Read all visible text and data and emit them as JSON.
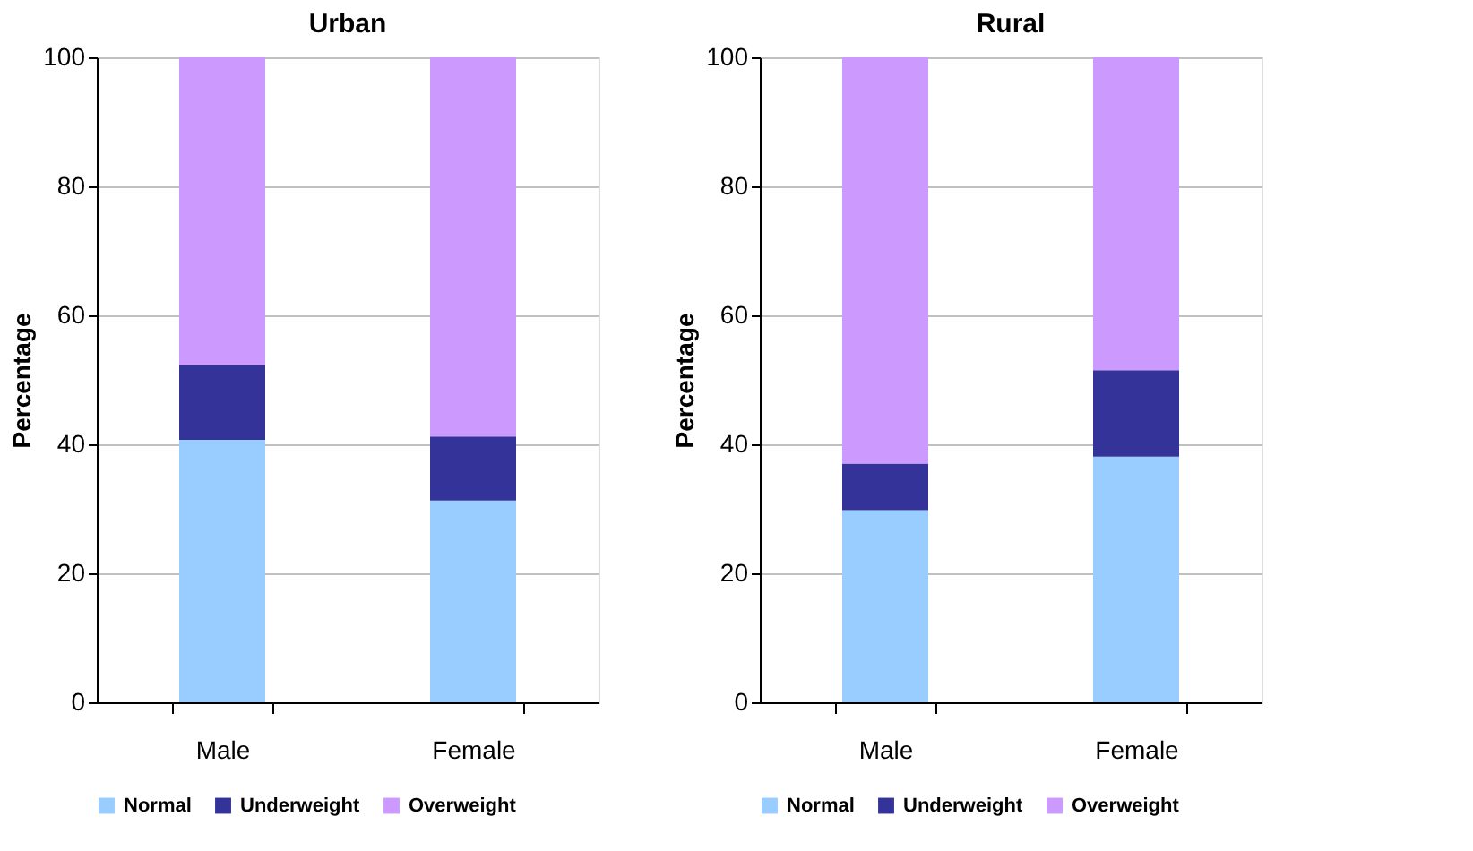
{
  "chart_data": [
    {
      "type": "bar",
      "title": "Urban",
      "ylabel": "Percentage",
      "categories": [
        "Male",
        "Female"
      ],
      "stacked": true,
      "ylim": [
        0,
        100
      ],
      "yticks": [
        0,
        20,
        40,
        60,
        80,
        100
      ],
      "grid": "y",
      "legend": "bottom",
      "series": [
        {
          "name": "Normal",
          "color": "#99ccff",
          "values": [
            40.7,
            31.3
          ]
        },
        {
          "name": "Underweight",
          "color": "#333399",
          "values": [
            11.6,
            9.9
          ]
        },
        {
          "name": "Overweight",
          "color": "#cc99ff",
          "values": [
            47.7,
            58.8
          ]
        }
      ]
    },
    {
      "type": "bar",
      "title": "Rural",
      "ylabel": "Percentage",
      "categories": [
        "Male",
        "Female"
      ],
      "stacked": true,
      "ylim": [
        0,
        100
      ],
      "yticks": [
        0,
        20,
        40,
        60,
        80,
        100
      ],
      "grid": "y",
      "legend": "bottom",
      "series": [
        {
          "name": "Normal",
          "color": "#99ccff",
          "values": [
            29.8,
            38.1
          ]
        },
        {
          "name": "Underweight",
          "color": "#333399",
          "values": [
            7.2,
            13.4
          ]
        },
        {
          "name": "Overweight",
          "color": "#cc99ff",
          "values": [
            63.0,
            48.5
          ]
        }
      ]
    }
  ]
}
